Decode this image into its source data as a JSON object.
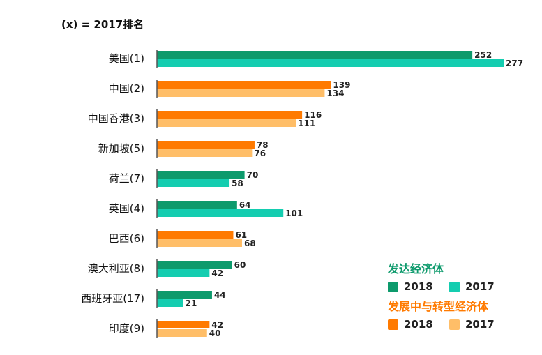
{
  "chart_data": {
    "type": "bar",
    "orientation": "horizontal",
    "note": "(x) = 2017排名",
    "categories": [
      "美国(1)",
      "中国(2)",
      "中国香港(3)",
      "新加坡(5)",
      "荷兰(7)",
      "英国(4)",
      "巴西(6)",
      "澳大利亚(8)",
      "西班牙亚(17)",
      "印度(9)"
    ],
    "groups": [
      "developed",
      "developing",
      "developing",
      "developing",
      "developed",
      "developed",
      "developing",
      "developed",
      "developed",
      "developing"
    ],
    "series": [
      {
        "name": "2018",
        "values": [
          252,
          139,
          116,
          78,
          70,
          64,
          61,
          60,
          44,
          42
        ]
      },
      {
        "name": "2017",
        "values": [
          277,
          134,
          111,
          76,
          58,
          101,
          68,
          42,
          21,
          40
        ]
      }
    ],
    "xlim": [
      0,
      277
    ],
    "grid": false,
    "legend": {
      "placement": "bottom-right",
      "developed": {
        "title": "发达经济体",
        "title_color": "#0d9a6c",
        "y2018": "2018",
        "y2017": "2017",
        "c2018": "#0d9a6c",
        "c2017": "#14cdb0"
      },
      "developing": {
        "title": "发展中与转型经济体",
        "title_color": "#ff7a00",
        "y2018": "2018",
        "y2017": "2017",
        "c2018": "#ff7a00",
        "c2017": "#ffbe68"
      }
    }
  }
}
